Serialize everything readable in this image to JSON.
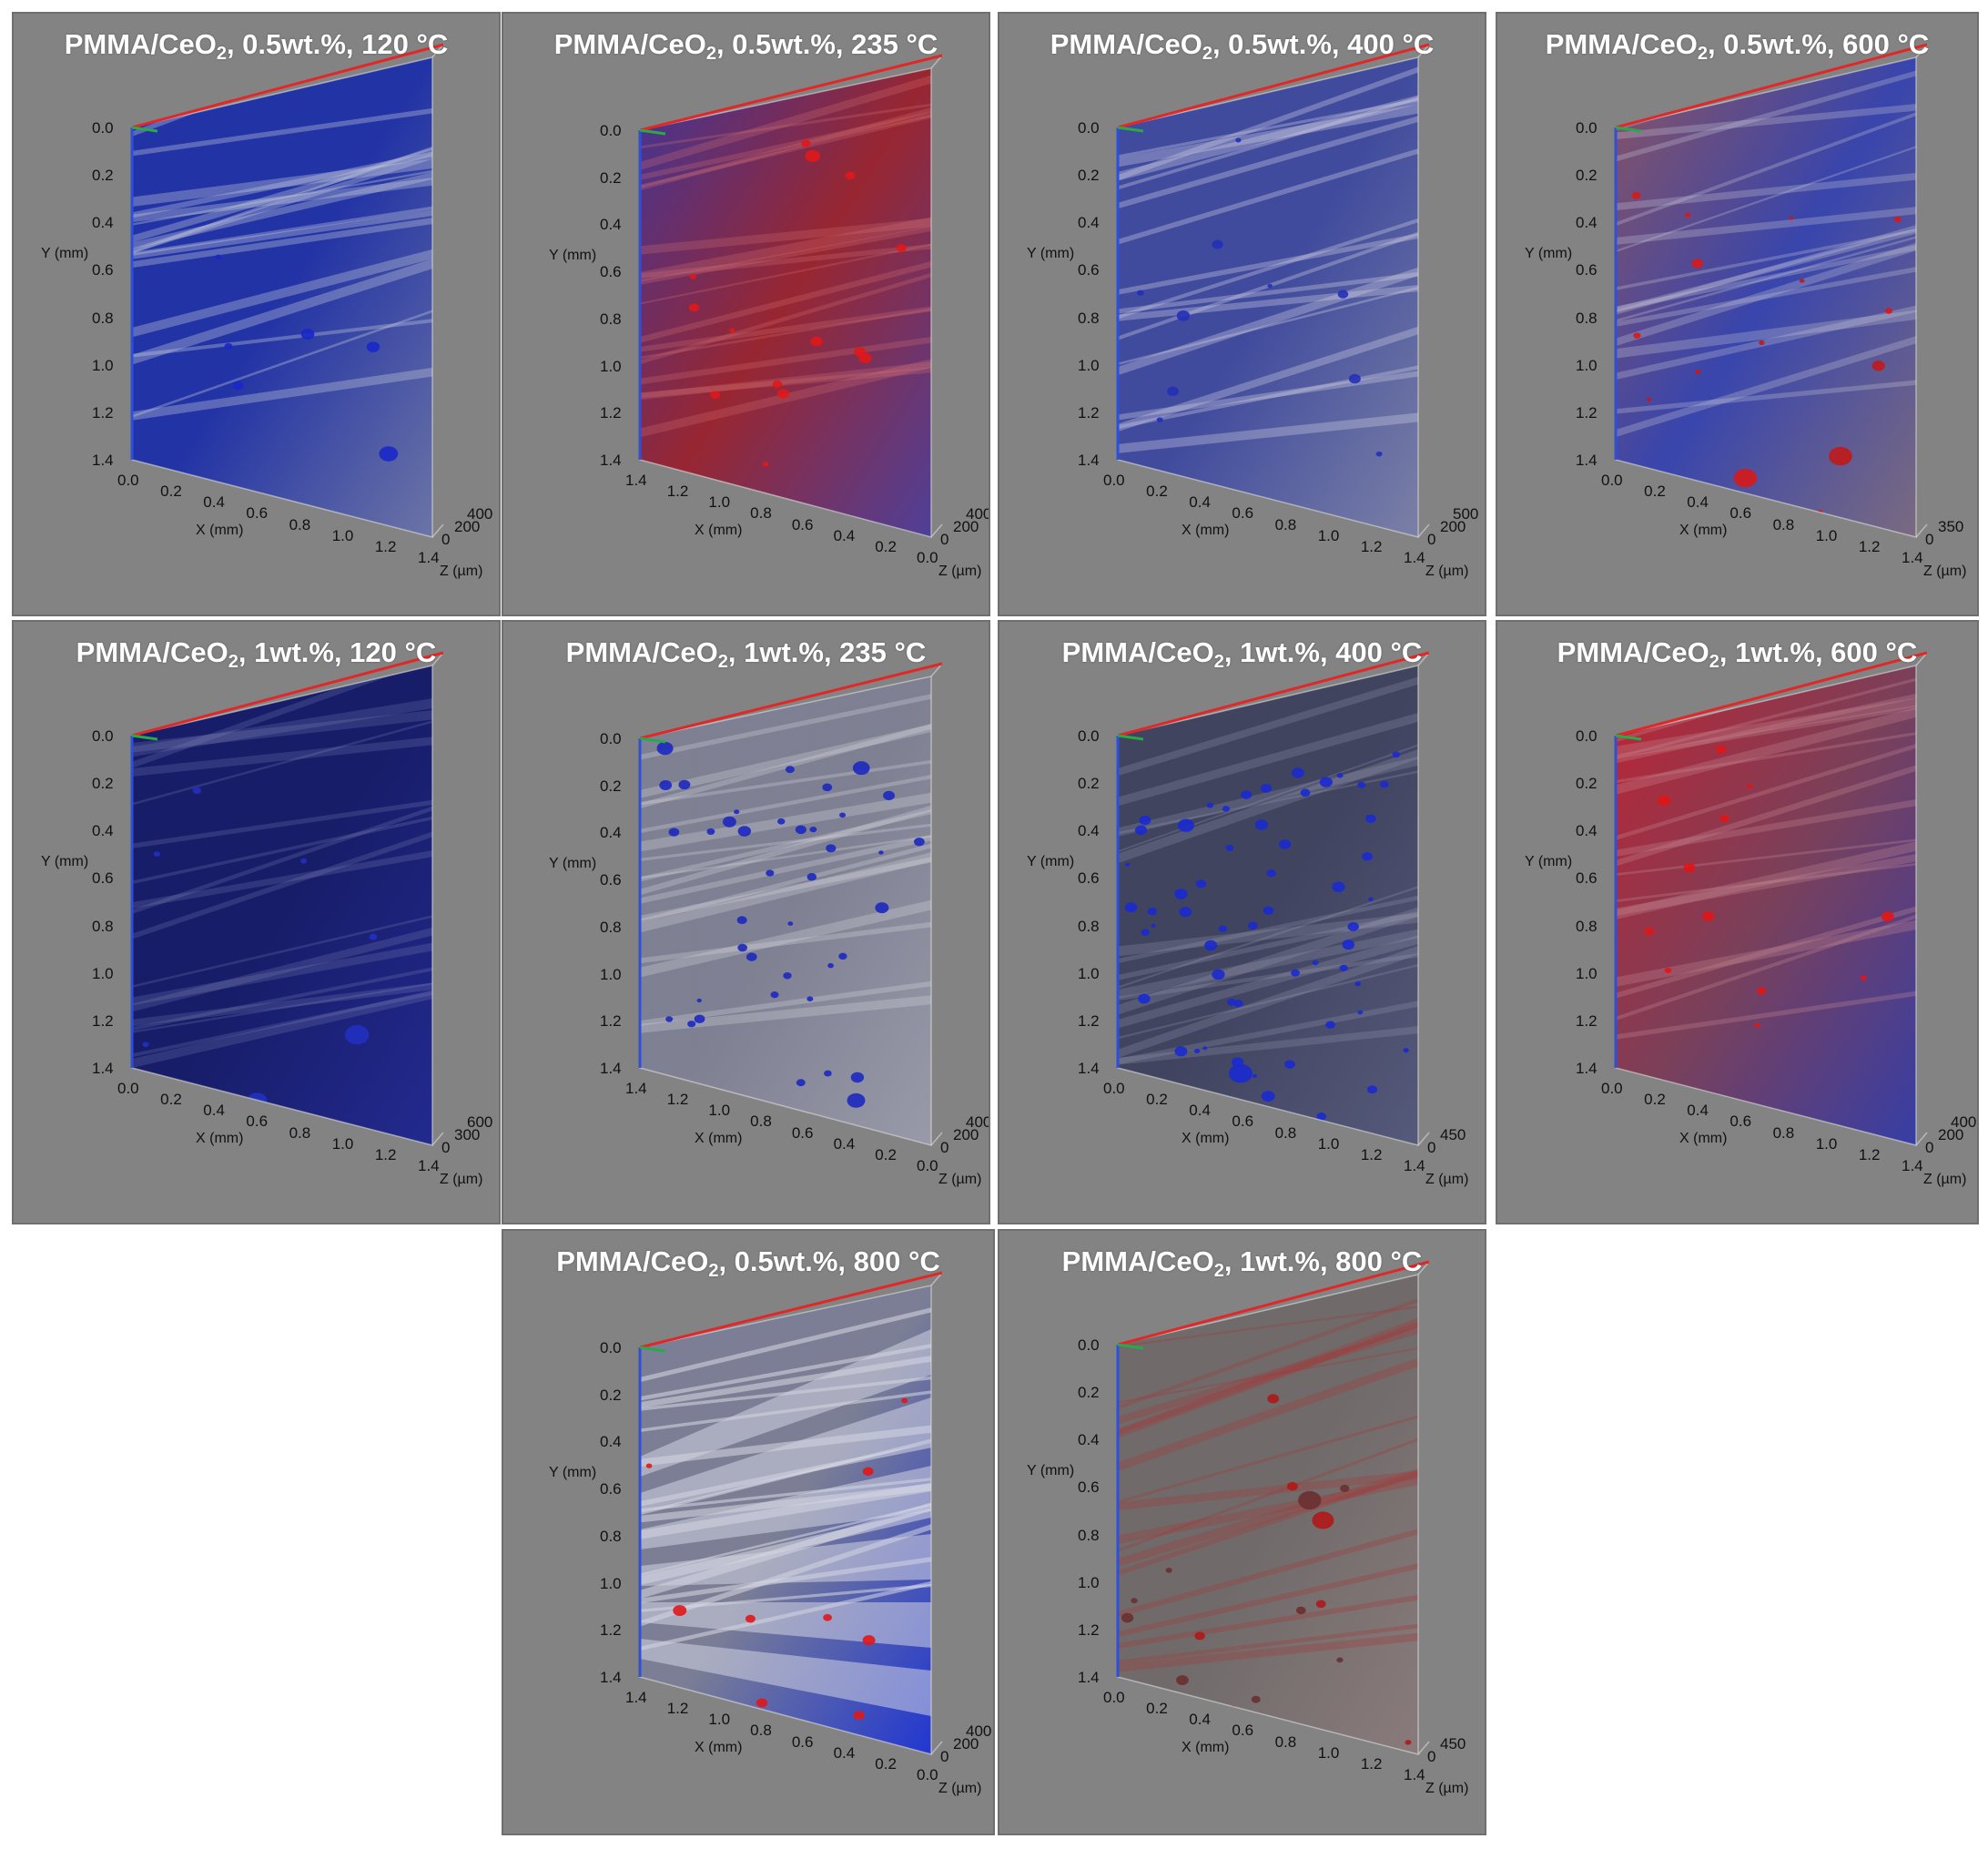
{
  "common": {
    "x_axis_label": "X (mm)",
    "y_axis_label": "Y (mm)",
    "z_axis_label": "Z (µm)",
    "y_ticks": [
      "0.0",
      "0.2",
      "0.4",
      "0.6",
      "0.8",
      "1.0",
      "1.2",
      "1.4"
    ],
    "x_ticks": [
      "0.0",
      "0.2",
      "0.4",
      "0.6",
      "0.8",
      "1.0",
      "1.2",
      "1.4"
    ],
    "colors": {
      "panel_bg": "#838383",
      "axis_x_red": "#e02828",
      "axis_y_blue": "#2e4fd8",
      "axis_z_green": "#2aa84a",
      "ceria_blue": "#1a24b8",
      "ceria_red": "#c81414"
    }
  },
  "panels": [
    {
      "title_main": "PMMA/CeO",
      "title_sub": "2",
      "title_rest": ", 0.5wt.%, 120 °C",
      "z_ticks": [
        "0",
        "200",
        "400"
      ],
      "tint": "blue",
      "view": "right"
    },
    {
      "title_main": "PMMA/CeO",
      "title_sub": "2",
      "title_rest": ", 0.5wt.%, 235 °C",
      "z_ticks": [
        "0",
        "200",
        "400"
      ],
      "tint": "red",
      "view": "left"
    },
    {
      "title_main": "PMMA/CeO",
      "title_sub": "2",
      "title_rest": ", 0.5wt.%, 400 °C",
      "z_ticks": [
        "0",
        "200",
        "500"
      ],
      "tint": "blue-light",
      "view": "right"
    },
    {
      "title_main": "PMMA/CeO",
      "title_sub": "2",
      "title_rest": ", 0.5wt.%, 600 °C",
      "z_ticks": [
        "0",
        "350"
      ],
      "tint": "blue-red",
      "view": "right"
    },
    {
      "title_main": "PMMA/CeO",
      "title_sub": "2",
      "title_rest": ", 1wt.%, 120 °C",
      "z_ticks": [
        "0",
        "300",
        "600"
      ],
      "tint": "dark-blue",
      "view": "right"
    },
    {
      "title_main": "PMMA/CeO",
      "title_sub": "2",
      "title_rest": ", 1wt.%, 235 °C",
      "z_ticks": [
        "0",
        "200",
        "400"
      ],
      "tint": "grey-dots",
      "view": "left"
    },
    {
      "title_main": "PMMA/CeO",
      "title_sub": "2",
      "title_rest": ", 1wt.%, 400 °C",
      "z_ticks": [
        "0",
        "450"
      ],
      "tint": "dark-dots",
      "view": "right"
    },
    {
      "title_main": "PMMA/CeO",
      "title_sub": "2",
      "title_rest": ", 1wt.%, 600 °C",
      "z_ticks": [
        "0",
        "200",
        "400"
      ],
      "tint": "red-blue",
      "view": "right"
    },
    {
      "title_main": "PMMA/CeO",
      "title_sub": "2",
      "title_rest": ", 0.5wt.%, 800 °C",
      "z_ticks": [
        "0",
        "200",
        "400"
      ],
      "tint": "blue-fan",
      "view": "left"
    },
    {
      "title_main": "PMMA/CeO",
      "title_sub": "2",
      "title_rest": ", 1wt.%, 800 °C",
      "z_ticks": [
        "0",
        "450"
      ],
      "tint": "grey-red",
      "view": "right"
    }
  ]
}
